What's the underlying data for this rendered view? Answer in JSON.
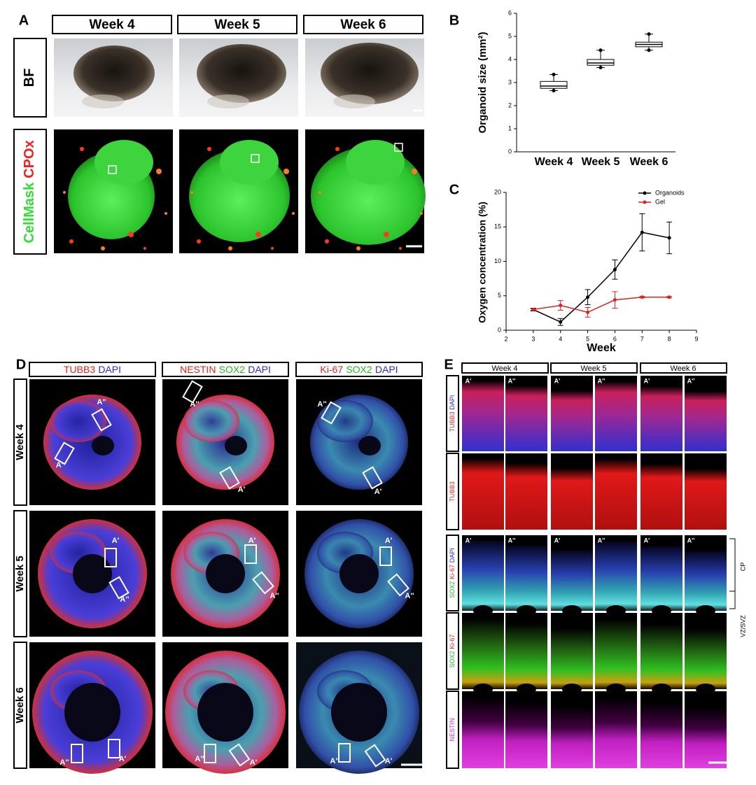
{
  "figure": {
    "A": {
      "label": "A",
      "columns": [
        "Week 4",
        "Week 5",
        "Week 6"
      ],
      "rows": [
        [
          {
            "text": "BF",
            "color": "#000000"
          }
        ],
        [
          {
            "text": "CellMask",
            "color": "#33dd33"
          },
          {
            "text": "CPOx",
            "color": "#ee2222"
          }
        ]
      ]
    },
    "D": {
      "label": "D",
      "columns": [
        [
          {
            "text": "TUBB3",
            "color": "#e8231e"
          },
          {
            "text": "DAPI",
            "color": "#2b2bd8"
          }
        ],
        [
          {
            "text": "NESTIN",
            "color": "#e8231e"
          },
          {
            "text": "SOX2",
            "color": "#22bb22"
          },
          {
            "text": "DAPI",
            "color": "#2b2bd8"
          }
        ],
        [
          {
            "text": "Ki-67",
            "color": "#e8231e"
          },
          {
            "text": "SOX2",
            "color": "#22bb22"
          },
          {
            "text": "DAPI",
            "color": "#2b2bd8"
          }
        ]
      ],
      "rows": [
        "Week 4",
        "Week 5",
        "Week 6"
      ],
      "roi_labels": [
        [
          "A''",
          "A'"
        ],
        [
          "A''",
          "A'"
        ],
        [
          "A''",
          "A'"
        ],
        [
          "A'",
          "A''"
        ],
        [
          "A'",
          "A''"
        ],
        [
          "A'",
          "A''"
        ],
        [
          "A''",
          "A'"
        ],
        [
          "A''",
          "A'"
        ],
        [
          "A''",
          "A'"
        ]
      ]
    },
    "E": {
      "label": "E",
      "columns": [
        "Week 4",
        "Week 5",
        "Week 6"
      ],
      "subcolumns": [
        "A'",
        "A''"
      ],
      "rows": [
        [
          {
            "text": "TUBB3",
            "color": "#e8231e"
          },
          {
            "text": "DAPI",
            "color": "#2b2bd8"
          }
        ],
        [
          {
            "text": "TUBB3",
            "color": "#e8231e"
          }
        ],
        [
          {
            "text": "SOX2",
            "color": "#22bb22"
          },
          {
            "text": "Ki-67",
            "color": "#e8231e"
          },
          {
            "text": "DAPI",
            "color": "#2b2bd8"
          }
        ],
        [
          {
            "text": "SOX2",
            "color": "#22bb22"
          },
          {
            "text": "Ki-67",
            "color": "#e8231e"
          }
        ],
        [
          {
            "text": "NESTIN",
            "color": "#dd22dd"
          }
        ]
      ],
      "zones": [
        "CP",
        "VZ/SVZ"
      ]
    }
  },
  "chart_data": [
    {
      "type": "box",
      "label": "B",
      "ylabel": "Organoid size (mm²)",
      "categories": [
        "Week 4",
        "Week 5",
        "Week 6"
      ],
      "boxes": {
        "min": [
          2.65,
          3.65,
          4.4
        ],
        "q1": [
          2.75,
          3.75,
          4.55
        ],
        "median": [
          2.85,
          3.85,
          4.65
        ],
        "q3": [
          3.05,
          4.0,
          4.75
        ],
        "max": [
          3.35,
          4.4,
          5.1
        ]
      },
      "color": "#000000",
      "ylim": [
        0,
        6
      ],
      "yticks": [
        0,
        1,
        2,
        3,
        4,
        5,
        6
      ]
    },
    {
      "type": "line",
      "label": "C",
      "xlabel": "Week",
      "ylabel": "Oxygen concentration (%)",
      "x": [
        3,
        4,
        5,
        6,
        7,
        8
      ],
      "series": [
        {
          "name": "Organoids",
          "color": "#000000",
          "values": [
            3.0,
            1.2,
            4.8,
            8.8,
            14.2,
            13.4
          ],
          "errors": [
            0.2,
            0.5,
            1.1,
            1.4,
            2.7,
            2.3
          ]
        },
        {
          "name": "Gel",
          "color": "#e02020",
          "values": [
            3.0,
            3.6,
            2.6,
            4.4,
            4.8,
            4.8
          ],
          "errors": [
            0.1,
            0.7,
            0.7,
            1.2,
            0.1,
            0.1
          ]
        }
      ],
      "xlim": [
        2,
        9
      ],
      "xticks": [
        2,
        3,
        4,
        5,
        6,
        7,
        8,
        9
      ],
      "ylim": [
        0,
        20
      ],
      "yticks": [
        0,
        5,
        10,
        15,
        20
      ],
      "legend": "upper right"
    }
  ]
}
